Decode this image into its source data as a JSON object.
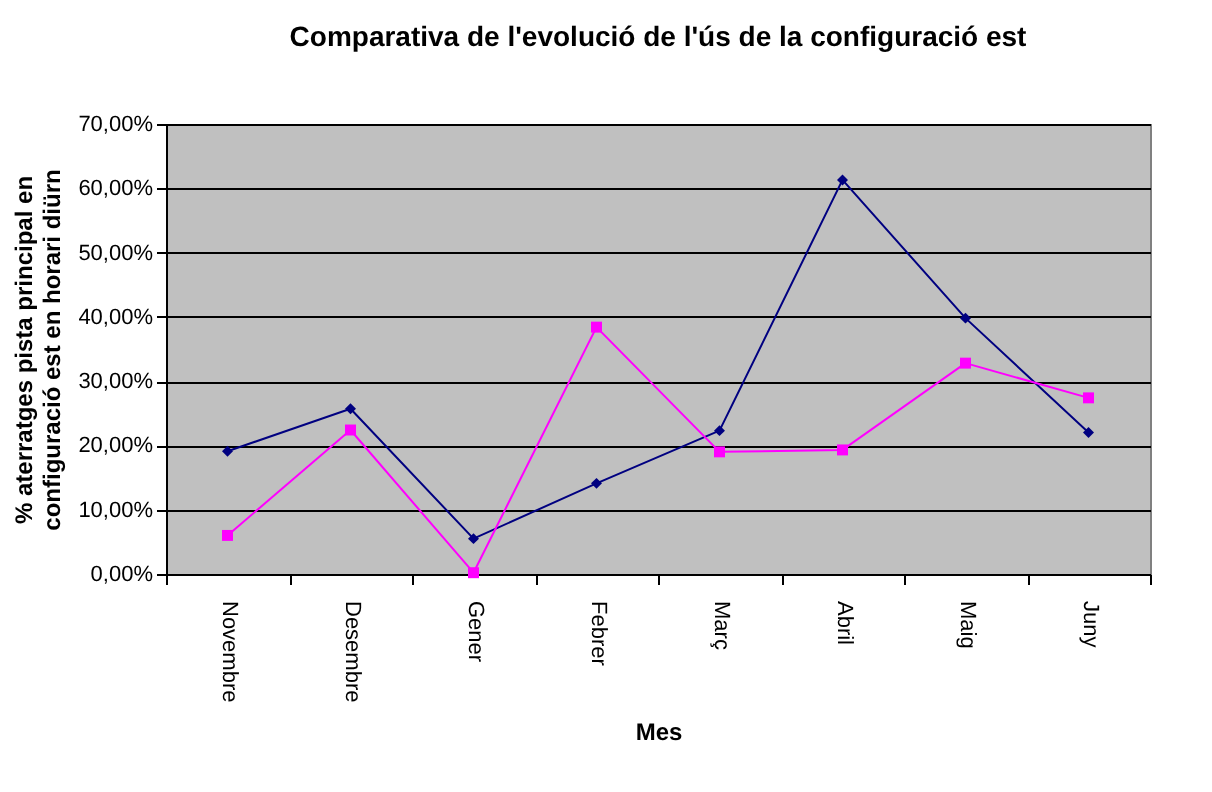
{
  "chart_data": {
    "type": "line",
    "title": "Comparativa de l'evolució de l'ús de la configuració est",
    "xlabel": "Mes",
    "ylabel": "% aterratges pista principal en\nconfiguració est en horari diürn",
    "categories": [
      "Novembre",
      "Desembre",
      "Gener",
      "Febrer",
      "Març",
      "Abril",
      "Maig",
      "Juny"
    ],
    "series": [
      {
        "color": "#000080",
        "marker": "diamond",
        "values": [
          19.1,
          25.7,
          5.5,
          14.1,
          22.3,
          61.3,
          39.8,
          22.0
        ]
      },
      {
        "color": "#ff00ff",
        "marker": "square",
        "values": [
          6.0,
          22.4,
          0.2,
          38.4,
          19.0,
          19.3,
          32.8,
          27.4
        ]
      }
    ],
    "ylim": [
      0,
      70
    ],
    "yticks": [
      {
        "value": 0,
        "label": "0,00%"
      },
      {
        "value": 10,
        "label": "10,00%"
      },
      {
        "value": 20,
        "label": "20,00%"
      },
      {
        "value": 30,
        "label": "30,00%"
      },
      {
        "value": 40,
        "label": "40,00%"
      },
      {
        "value": 50,
        "label": "50,00%"
      },
      {
        "value": 60,
        "label": "60,00%"
      },
      {
        "value": 70,
        "label": "70,00%"
      }
    ],
    "grid": "y",
    "line_style": "solid"
  }
}
